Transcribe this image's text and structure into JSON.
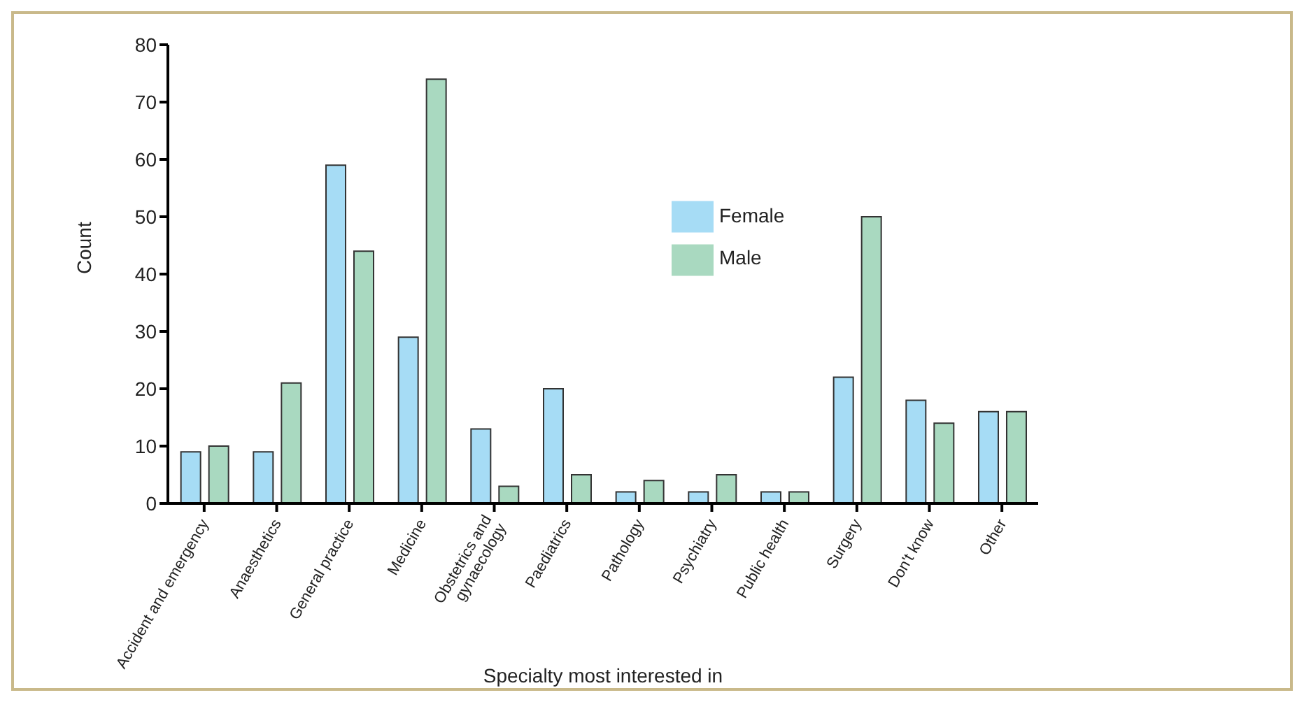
{
  "chart_data": {
    "type": "bar",
    "xlabel": "Specialty most interested in",
    "ylabel": "Count",
    "categories": [
      "Accident and emergency",
      "Anaesthetics",
      "General practice",
      "Medicine",
      "Obstetrics and gynaecology",
      "Paediatrics",
      "Pathology",
      "Psychiatry",
      "Public health",
      "Surgery",
      "Don't know",
      "Other"
    ],
    "series": [
      {
        "name": "Female",
        "color": "#a6dcf5",
        "values": [
          9,
          9,
          59,
          29,
          13,
          20,
          2,
          2,
          2,
          22,
          18,
          16
        ]
      },
      {
        "name": "Male",
        "color": "#a9d9c0",
        "values": [
          10,
          21,
          44,
          74,
          3,
          5,
          4,
          5,
          2,
          50,
          14,
          16
        ]
      }
    ],
    "ylim": [
      0,
      80
    ],
    "yticks": [
      0,
      10,
      20,
      30,
      40,
      50,
      60,
      70,
      80
    ],
    "grid": false,
    "legend": "top right"
  }
}
